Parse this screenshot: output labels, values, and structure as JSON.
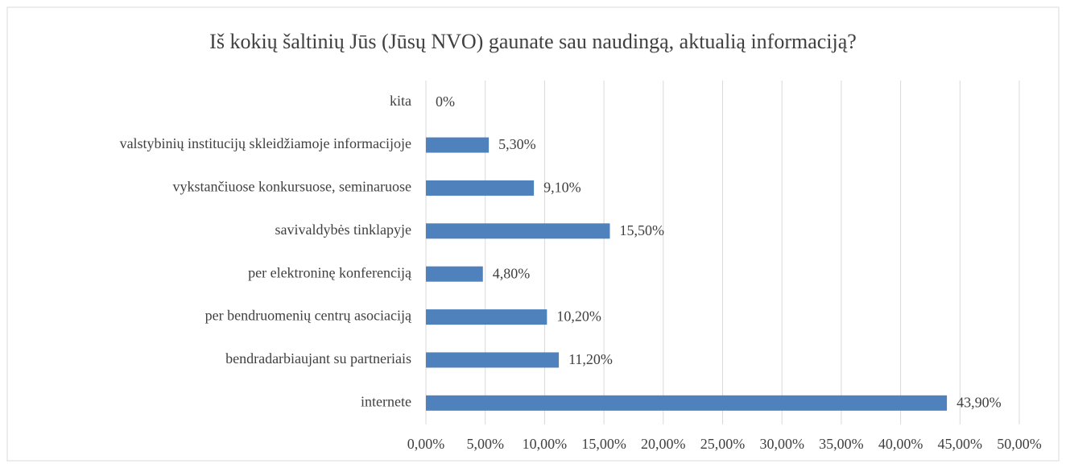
{
  "chart_data": {
    "type": "bar",
    "orientation": "horizontal",
    "title": "Iš kokių šaltinių Jūs (Jūsų NVO) gaunate sau naudingą, aktualią informaciją?",
    "categories": [
      "kita",
      "valstybinių institucijų skleidžiamoje informacijoje",
      "vykstančiuose konkursuose, seminaruose",
      "savivaldybės tinklapyje",
      "per elektroninę konferenciją",
      "per bendruomenių centrų asociaciją",
      "bendradarbiaujant su partneriais",
      "internete"
    ],
    "values": [
      0,
      5.3,
      9.1,
      15.5,
      4.8,
      10.2,
      11.2,
      43.9
    ],
    "value_labels": [
      "0%",
      "5,30%",
      "9,10%",
      "15,50%",
      "4,80%",
      "10,20%",
      "11,20%",
      "43,90%"
    ],
    "color": "#4f81bd",
    "xlim": [
      0,
      50
    ],
    "xticks": [
      {
        "value": 0,
        "label": "0,00%"
      },
      {
        "value": 5,
        "label": "5,00%"
      },
      {
        "value": 10,
        "label": "10,00%"
      },
      {
        "value": 15,
        "label": "15,00%"
      },
      {
        "value": 20,
        "label": "20,00%"
      },
      {
        "value": 25,
        "label": "25,00%"
      },
      {
        "value": 30,
        "label": "30,00%"
      },
      {
        "value": 35,
        "label": "35,00%"
      },
      {
        "value": 40,
        "label": "40,00%"
      },
      {
        "value": 45,
        "label": "45,00%"
      },
      {
        "value": 50,
        "label": "50,00%"
      }
    ],
    "grid": true
  }
}
